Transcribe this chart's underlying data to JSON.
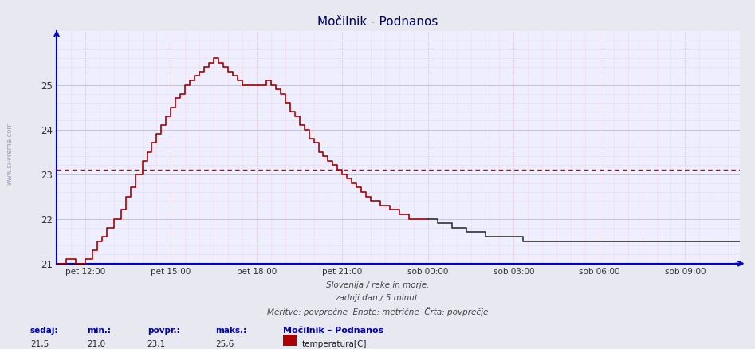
{
  "title": "Močilnik - Podnanos",
  "subtitle1": "Slovenija / reke in morje.",
  "subtitle2": "zadnji dan / 5 minut.",
  "subtitle3": "Meritve: povprečne  Enote: metrične  Črta: povprečje",
  "legend_title": "Močilnik – Podnanos",
  "legend_label": "temperatura[C]",
  "xlabel_ticks": [
    "pet 12:00",
    "pet 15:00",
    "pet 18:00",
    "pet 21:00",
    "sob 00:00",
    "sob 03:00",
    "sob 06:00",
    "sob 09:00"
  ],
  "tick_positions": [
    12,
    48,
    84,
    120,
    156,
    192,
    228,
    264
  ],
  "yticks": [
    21,
    22,
    23,
    24,
    25
  ],
  "ylim_min": 21.0,
  "ylim_max": 26.2,
  "xlim_max": 287,
  "n_points": 288,
  "avg_line": 23.1,
  "sedaj": "21,5",
  "min_val": "21,0",
  "povpr": "23,1",
  "maks": "25,6",
  "line_color": "#aa0000",
  "line_color2": "#333333",
  "avg_line_color": "#cc0000",
  "bg_color": "#e8e8f0",
  "plot_bg_color": "#eeeeff",
  "grid_color_major_y": "#bbbbcc",
  "grid_color_minor_y": "#ddddee",
  "grid_color_major_x": "#dd9999",
  "grid_color_minor_x": "#eebbbb",
  "axis_color": "#0000cc",
  "text_color": "#0000aa",
  "title_color": "#000066",
  "watermark_color": "#9999bb"
}
